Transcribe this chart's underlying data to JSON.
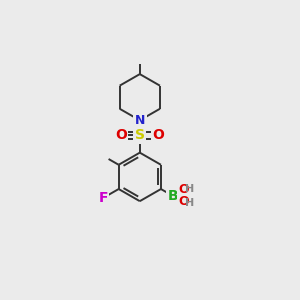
{
  "bg_color": "#ebebeb",
  "atom_colors": {
    "C": "#333333",
    "N": "#2222cc",
    "O": "#dd0000",
    "S": "#cccc00",
    "B": "#22aa22",
    "F": "#cc00cc",
    "H": "#888888"
  },
  "bond_color": "#333333",
  "bond_lw": 1.4
}
